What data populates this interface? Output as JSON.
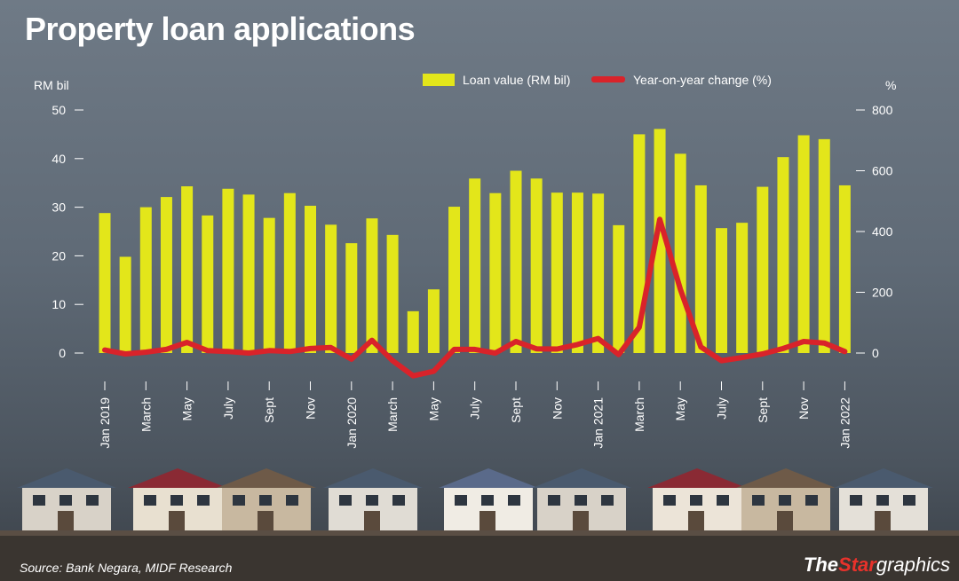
{
  "title": "Property loan applications",
  "source": "Source: Bank Negara, MIDF Research",
  "brand": {
    "part1": "The",
    "part2": "Star",
    "part3": "graphics"
  },
  "colors": {
    "bar": "#e3e61a",
    "line": "#d9232a",
    "background": "#646f7b"
  },
  "chart_data": {
    "type": "bar",
    "left_axis": {
      "unit_label": "RM bil",
      "range": [
        0,
        50
      ],
      "ticks": [
        "0",
        "10",
        "20",
        "30",
        "40",
        "50"
      ]
    },
    "right_axis": {
      "unit_label": "%",
      "range": [
        0,
        800
      ],
      "ticks": [
        "0",
        "200",
        "400",
        "600",
        "800"
      ]
    },
    "categories": [
      "Jan 2019",
      "Feb 2019",
      "March",
      "Apr 2019",
      "May",
      "Jun 2019",
      "July",
      "Aug 2019",
      "Sept",
      "Oct 2019",
      "Nov",
      "Dec 2019",
      "Jan 2020",
      "Feb 2020",
      "March",
      "Apr 2020",
      "May",
      "Jun 2020",
      "July",
      "Aug 2020",
      "Sept",
      "Oct 2020",
      "Nov",
      "Dec 2020",
      "Jan 2021",
      "Feb 2021",
      "March",
      "Apr 2021",
      "May",
      "Jun 2021",
      "July",
      "Aug 2021",
      "Sept",
      "Oct 2021",
      "Nov",
      "Dec 2021",
      "Jan 2022"
    ],
    "tick_labels": [
      "Jan 2019",
      "",
      "March",
      "",
      "May",
      "",
      "July",
      "",
      "Sept",
      "",
      "Nov",
      "",
      "Jan 2020",
      "",
      "March",
      "",
      "May",
      "",
      "July",
      "",
      "Sept",
      "",
      "Nov",
      "",
      "Jan 2021",
      "",
      "March",
      "",
      "May",
      "",
      "July",
      "",
      "Sept",
      "",
      "Nov",
      "",
      "Jan 2022"
    ],
    "series": [
      {
        "name": "Loan value (RM bil)",
        "type": "bar",
        "axis": "left",
        "values": [
          28.8,
          19.8,
          30.0,
          32.1,
          34.3,
          28.3,
          33.8,
          32.6,
          27.8,
          32.9,
          30.3,
          26.4,
          22.6,
          27.7,
          24.3,
          8.6,
          13.1,
          30.1,
          35.9,
          32.9,
          37.5,
          35.9,
          33.0,
          33.0,
          32.8,
          26.3,
          45.0,
          46.1,
          41.0,
          34.5,
          25.7,
          26.8,
          34.2,
          40.3,
          44.8,
          44.0,
          34.5
        ]
      },
      {
        "name": "Year-on-year change (%)",
        "type": "line",
        "axis": "right",
        "values": [
          10,
          -3,
          3,
          12,
          35,
          8,
          5,
          0,
          8,
          5,
          15,
          18,
          -20,
          42,
          -25,
          -75,
          -60,
          12,
          12,
          0,
          38,
          14,
          13,
          28,
          48,
          -5,
          85,
          440,
          210,
          20,
          -25,
          -15,
          -3,
          15,
          38,
          33,
          5
        ]
      }
    ],
    "legend_position": "top",
    "grid": false
  }
}
